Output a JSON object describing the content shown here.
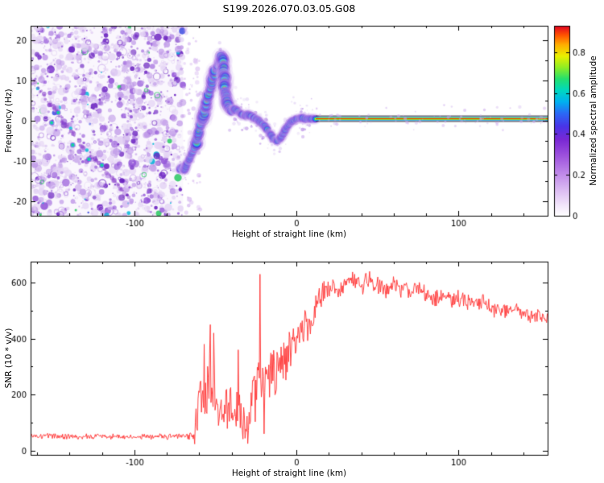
{
  "figure": {
    "title": "S199.2026.070.03.05.G08",
    "background": "#ffffff"
  },
  "chart_data": [
    {
      "type": "heatmap",
      "id": "spectrogram",
      "xlabel": "Height of straight line (km)",
      "ylabel": "Frequency (Hz)",
      "xlim": [
        -164,
        155
      ],
      "ylim": [
        -23.5,
        23.5
      ],
      "xticks": [
        -100,
        0,
        100
      ],
      "yticks": [
        -20,
        -10,
        0,
        10,
        20
      ],
      "x_minor_step": 20,
      "y_minor_step": 5,
      "colorbar": {
        "label": "Normalized spectral amplitude",
        "ticks": [
          0,
          0.2,
          0.4,
          0.6,
          0.8
        ],
        "range": [
          0,
          0.93
        ],
        "gradient": [
          [
            0,
            "#ffffff"
          ],
          [
            0.05,
            "#f4e8fb"
          ],
          [
            0.13,
            "#ddbef3"
          ],
          [
            0.22,
            "#c08ae9"
          ],
          [
            0.32,
            "#9c50dd"
          ],
          [
            0.4,
            "#7a28d4"
          ],
          [
            0.47,
            "#4a34e8"
          ],
          [
            0.54,
            "#2a6af6"
          ],
          [
            0.6,
            "#00b2f0"
          ],
          [
            0.66,
            "#00d8c0"
          ],
          [
            0.72,
            "#24e06e"
          ],
          [
            0.78,
            "#8fee24"
          ],
          [
            0.84,
            "#e9f000"
          ],
          [
            0.9,
            "#ffae00"
          ],
          [
            0.95,
            "#ff5400"
          ],
          [
            1,
            "#e00024"
          ]
        ]
      },
      "noise_region": {
        "x_min": -164,
        "x_max": -70,
        "description": "dense purple speckle noise"
      },
      "faint_trace": [
        [
          -168,
          13
        ],
        [
          -152,
          4
        ],
        [
          -138,
          -3
        ],
        [
          -126,
          -9
        ],
        [
          -114,
          -14
        ],
        [
          -104,
          -19
        ]
      ],
      "noise_blobs": [
        [
          -151,
          -0.5
        ],
        [
          -138,
          -6
        ],
        [
          -128,
          -9.5
        ],
        [
          -120,
          -11
        ],
        [
          -147,
          2
        ]
      ],
      "trace": [
        [
          -72,
          -12
        ],
        [
          -70.5,
          -11.5
        ],
        [
          -69,
          -12.2
        ],
        [
          -67.5,
          -10.5
        ],
        [
          -66,
          -9.5
        ],
        [
          -64.5,
          -8
        ],
        [
          -63,
          -7
        ],
        [
          -62,
          -5.5
        ],
        [
          -61,
          -4
        ],
        [
          -60,
          -2.5
        ],
        [
          -59,
          -1
        ],
        [
          -58,
          0.5
        ],
        [
          -57,
          2
        ],
        [
          -56,
          3.5
        ],
        [
          -55,
          5
        ],
        [
          -54,
          6.5
        ],
        [
          -53,
          8
        ],
        [
          -52,
          9.5
        ],
        [
          -51,
          11
        ],
        [
          -50,
          12.5
        ],
        [
          -49,
          13.5
        ],
        [
          -48,
          14.5
        ],
        [
          -47,
          15.5
        ],
        [
          -46,
          16
        ],
        [
          -45.2,
          13.5
        ],
        [
          -44.6,
          11
        ],
        [
          -44,
          8.5
        ],
        [
          -43.5,
          6.5
        ],
        [
          -43,
          4.8
        ],
        [
          -42.2,
          3.4
        ],
        [
          -41.2,
          2.6
        ],
        [
          -40,
          2.2
        ],
        [
          -38,
          2.8
        ],
        [
          -36,
          2.4
        ],
        [
          -34,
          1.6
        ],
        [
          -32,
          1.2
        ],
        [
          -30,
          1.6
        ],
        [
          -28,
          1.2
        ],
        [
          -26,
          0.6
        ],
        [
          -24,
          0.2
        ],
        [
          -22,
          -0.4
        ],
        [
          -20,
          -1.2
        ],
        [
          -18,
          -2.2
        ],
        [
          -16,
          -3.4
        ],
        [
          -14,
          -4.4
        ],
        [
          -12,
          -5
        ],
        [
          -10,
          -4.4
        ],
        [
          -8,
          -3
        ],
        [
          -6,
          -1.6
        ],
        [
          -4,
          -0.6
        ],
        [
          -2,
          0.1
        ],
        [
          0,
          0.5
        ],
        [
          3,
          0.7
        ],
        [
          6,
          0.5
        ],
        [
          9,
          0.5
        ],
        [
          12,
          0.5
        ]
      ],
      "flat_line": {
        "x_start": 12,
        "x_end": 155,
        "freq": 0.5
      }
    },
    {
      "type": "line",
      "id": "snr",
      "xlabel": "Height of straight line (km)",
      "ylabel": "SNR (10 * v/v)",
      "xlim": [
        -164,
        155
      ],
      "ylim": [
        -15,
        675
      ],
      "xticks": [
        -100,
        0,
        100
      ],
      "yticks": [
        0,
        200,
        400,
        600
      ],
      "x_minor_step": 20,
      "y_minor_step": 100,
      "line_color": "#ff3232",
      "series": [
        {
          "name": "SNR",
          "envelope": [
            [
              -164,
              52
            ],
            [
              -100,
              50
            ],
            [
              -66,
              52
            ],
            [
              -63,
              70
            ],
            [
              -60,
              160
            ],
            [
              -56,
              220
            ],
            [
              -52,
              240
            ],
            [
              -49,
              150
            ],
            [
              -46,
              120
            ],
            [
              -43,
              170
            ],
            [
              -40,
              140
            ],
            [
              -37,
              110
            ],
            [
              -34,
              130
            ],
            [
              -31,
              100
            ],
            [
              -28,
              170
            ],
            [
              -25,
              220
            ],
            [
              -22,
              260
            ],
            [
              -19,
              240
            ],
            [
              -16,
              280
            ],
            [
              -13,
              300
            ],
            [
              -10,
              320
            ],
            [
              -7,
              300
            ],
            [
              -4,
              360
            ],
            [
              -1,
              380
            ],
            [
              2,
              420
            ],
            [
              5,
              470
            ],
            [
              8,
              430
            ],
            [
              11,
              500
            ],
            [
              14,
              540
            ],
            [
              17,
              560
            ],
            [
              20,
              580
            ],
            [
              25,
              560
            ],
            [
              30,
              590
            ],
            [
              35,
              600
            ],
            [
              40,
              580
            ],
            [
              45,
              605
            ],
            [
              50,
              590
            ],
            [
              55,
              570
            ],
            [
              60,
              595
            ],
            [
              65,
              580
            ],
            [
              70,
              565
            ],
            [
              75,
              580
            ],
            [
              80,
              560
            ],
            [
              85,
              545
            ],
            [
              90,
              555
            ],
            [
              95,
              540
            ],
            [
              100,
              545
            ],
            [
              105,
              530
            ],
            [
              110,
              525
            ],
            [
              115,
              530
            ],
            [
              120,
              510
            ],
            [
              125,
              505
            ],
            [
              130,
              500
            ],
            [
              135,
              505
            ],
            [
              140,
              490
            ],
            [
              145,
              485
            ],
            [
              150,
              480
            ],
            [
              155,
              475
            ]
          ],
          "jitter": [
            [
              -164,
              12
            ],
            [
              -68,
              12
            ],
            [
              -64,
              30
            ],
            [
              -60,
              110
            ],
            [
              -55,
              150
            ],
            [
              -50,
              120
            ],
            [
              -46,
              90
            ],
            [
              -42,
              110
            ],
            [
              -38,
              100
            ],
            [
              -33,
              110
            ],
            [
              -28,
              130
            ],
            [
              -23,
              140
            ],
            [
              -18,
              130
            ],
            [
              -13,
              120
            ],
            [
              -8,
              110
            ],
            [
              -3,
              100
            ],
            [
              2,
              90
            ],
            [
              7,
              85
            ],
            [
              12,
              70
            ],
            [
              18,
              55
            ],
            [
              25,
              45
            ],
            [
              40,
              40
            ],
            [
              60,
              40
            ],
            [
              80,
              40
            ],
            [
              100,
              38
            ],
            [
              120,
              35
            ],
            [
              155,
              32
            ]
          ],
          "spikes": [
            [
              -57,
              380
            ],
            [
              -53,
              450
            ],
            [
              -51,
              420
            ],
            [
              -36,
              360
            ],
            [
              -30,
              25
            ],
            [
              -22.5,
              630
            ],
            [
              -20,
              60
            ]
          ]
        }
      ]
    }
  ]
}
